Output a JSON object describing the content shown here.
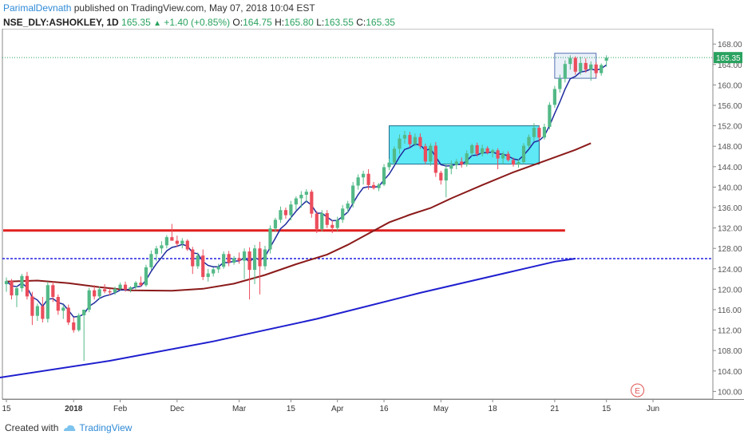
{
  "header": {
    "author": "ParimalDevnath",
    "published": "published on TradingView.com, May 07, 2018 10:04 EST",
    "symbol": "NSE_DLY:ASHOKLEY, 1D",
    "last": "165.35",
    "change": "+1.40 (+0.85%)",
    "o_label": "O:",
    "o_value": "164.75",
    "h_label": "H:",
    "h_value": "165.80",
    "l_label": "L:",
    "l_value": "163.55",
    "c_label": "C:",
    "c_value": "165.35"
  },
  "footer": {
    "created_with": "Created with",
    "brand": "TradingView"
  },
  "colors": {
    "up": "#53b987",
    "down": "#eb4d5c",
    "ema_short": "#1e2a9e",
    "ema_mid": "#8b1a1a",
    "ema_long": "#1f1fcf",
    "support_red": "#e02020",
    "support_blue": "#2020e0",
    "box_fill": "#5fe8f5",
    "last_price": "#2aa25f"
  },
  "chart_data": {
    "type": "candlestick",
    "y_ticks": [
      "168.00",
      "164.00",
      "160.00",
      "156.00",
      "152.00",
      "148.00",
      "144.00",
      "140.00",
      "136.00",
      "132.00",
      "128.00",
      "124.00",
      "120.00",
      "116.00",
      "112.00",
      "108.00",
      "104.00",
      "100.00"
    ],
    "x_ticks": [
      "Dec",
      "18",
      "2018",
      "15",
      "Feb",
      "15",
      "Mar",
      "15",
      "Apr",
      "16",
      "May",
      "21",
      "Jun"
    ],
    "ylim": [
      98.5,
      171
    ],
    "last_price_label": "165.35",
    "event_marker": "E",
    "candles": [
      [
        121.0,
        122.3,
        119.5,
        121.6
      ],
      [
        121.6,
        122.0,
        118.0,
        118.8
      ],
      [
        118.8,
        120.6,
        116.5,
        120.2
      ],
      [
        120.2,
        123.0,
        119.5,
        122.6
      ],
      [
        122.6,
        123.4,
        118.0,
        118.6
      ],
      [
        118.6,
        119.5,
        113.0,
        114.8
      ],
      [
        114.8,
        117.2,
        113.8,
        116.7
      ],
      [
        116.7,
        118.5,
        113.5,
        114.2
      ],
      [
        114.2,
        121.5,
        113.5,
        120.8
      ],
      [
        120.8,
        121.5,
        117.5,
        118.5
      ],
      [
        118.5,
        119.0,
        115.0,
        115.8
      ],
      [
        115.8,
        117.0,
        114.2,
        116.4
      ],
      [
        116.4,
        117.0,
        113.0,
        113.5
      ],
      [
        113.5,
        114.5,
        111.5,
        112.0
      ],
      [
        112.0,
        115.3,
        111.7,
        114.9
      ],
      [
        114.9,
        116.0,
        106.0,
        116.0
      ],
      [
        116.0,
        120.3,
        115.5,
        119.8
      ],
      [
        119.8,
        120.8,
        118.0,
        118.6
      ],
      [
        118.6,
        120.5,
        118.0,
        120.0
      ],
      [
        120.0,
        121.0,
        119.2,
        119.6
      ],
      [
        119.6,
        120.2,
        118.8,
        119.4
      ],
      [
        119.4,
        120.5,
        118.9,
        120.1
      ],
      [
        120.1,
        121.3,
        119.8,
        120.9
      ],
      [
        120.9,
        121.5,
        119.5,
        119.9
      ],
      [
        119.9,
        120.6,
        119.4,
        120.4
      ],
      [
        120.4,
        121.6,
        120.0,
        121.3
      ],
      [
        121.3,
        122.5,
        120.5,
        120.8
      ],
      [
        120.8,
        124.8,
        120.5,
        124.3
      ],
      [
        124.3,
        127.6,
        123.8,
        126.9
      ],
      [
        126.9,
        128.5,
        125.5,
        128.0
      ],
      [
        128.0,
        129.4,
        127.0,
        128.6
      ],
      [
        128.6,
        130.6,
        128.0,
        130.2
      ],
      [
        130.2,
        132.8,
        129.8,
        129.5
      ],
      [
        129.5,
        130.5,
        128.3,
        128.9
      ],
      [
        128.9,
        130.0,
        128.0,
        129.5
      ],
      [
        129.5,
        129.8,
        127.5,
        127.8
      ],
      [
        127.8,
        128.3,
        123.0,
        124.5
      ],
      [
        124.5,
        127.2,
        124.0,
        126.6
      ],
      [
        126.6,
        127.8,
        121.8,
        122.4
      ],
      [
        122.4,
        124.0,
        121.5,
        123.1
      ],
      [
        123.1,
        124.3,
        122.5,
        123.9
      ],
      [
        123.9,
        125.0,
        123.2,
        124.4
      ],
      [
        124.4,
        127.4,
        124.0,
        126.9
      ],
      [
        126.9,
        127.5,
        124.5,
        125.2
      ],
      [
        125.2,
        126.5,
        124.8,
        126.1
      ],
      [
        126.1,
        127.2,
        125.0,
        125.6
      ],
      [
        125.6,
        128.0,
        122.0,
        127.4
      ],
      [
        127.4,
        128.2,
        118.0,
        123.8
      ],
      [
        123.8,
        128.7,
        121.0,
        128.0
      ],
      [
        128.0,
        129.3,
        119.0,
        124.5
      ],
      [
        124.5,
        128.5,
        123.8,
        127.8
      ],
      [
        127.8,
        132.5,
        127.0,
        131.9
      ],
      [
        131.9,
        134.0,
        131.2,
        133.6
      ],
      [
        133.6,
        136.2,
        133.0,
        135.5
      ],
      [
        135.5,
        136.0,
        133.8,
        134.5
      ],
      [
        134.5,
        137.3,
        133.5,
        136.6
      ],
      [
        136.6,
        138.2,
        135.5,
        137.8
      ],
      [
        137.8,
        139.2,
        136.0,
        138.5
      ],
      [
        138.5,
        139.6,
        137.0,
        139.1
      ],
      [
        139.1,
        139.5,
        134.0,
        134.8
      ],
      [
        134.8,
        135.3,
        131.0,
        131.8
      ],
      [
        131.8,
        135.5,
        131.3,
        134.9
      ],
      [
        134.9,
        135.5,
        132.0,
        132.6
      ],
      [
        132.6,
        133.5,
        131.0,
        132.0
      ],
      [
        132.0,
        134.2,
        131.4,
        133.6
      ],
      [
        133.6,
        136.5,
        133.0,
        135.8
      ],
      [
        135.8,
        137.3,
        135.0,
        136.8
      ],
      [
        136.8,
        141.0,
        136.0,
        140.3
      ],
      [
        140.3,
        142.5,
        139.5,
        141.9
      ],
      [
        141.9,
        143.2,
        140.5,
        142.6
      ],
      [
        142.6,
        143.5,
        139.5,
        140.4
      ],
      [
        140.4,
        141.0,
        139.5,
        139.8
      ],
      [
        139.8,
        140.8,
        139.2,
        140.5
      ],
      [
        140.5,
        144.5,
        140.2,
        143.9
      ],
      [
        143.9,
        145.5,
        143.3,
        144.8
      ],
      [
        144.8,
        148.0,
        144.3,
        147.5
      ],
      [
        147.5,
        150.3,
        146.5,
        149.5
      ],
      [
        149.5,
        151.0,
        148.5,
        150.2
      ],
      [
        150.2,
        150.8,
        147.8,
        148.4
      ],
      [
        148.4,
        150.5,
        148.0,
        149.8
      ],
      [
        149.8,
        150.5,
        147.5,
        148.0
      ],
      [
        148.0,
        148.5,
        144.5,
        145.0
      ],
      [
        145.0,
        148.6,
        144.2,
        148.1
      ],
      [
        148.1,
        148.8,
        142.0,
        142.8
      ],
      [
        142.8,
        143.2,
        140.5,
        141.3
      ],
      [
        141.3,
        144.5,
        138.0,
        143.6
      ],
      [
        143.6,
        145.2,
        142.5,
        144.3
      ],
      [
        144.3,
        145.5,
        143.5,
        145.0
      ],
      [
        145.0,
        145.8,
        143.8,
        144.4
      ],
      [
        144.4,
        147.2,
        144.0,
        146.6
      ],
      [
        146.6,
        148.5,
        146.0,
        148.2
      ],
      [
        148.2,
        148.7,
        146.0,
        146.5
      ],
      [
        146.5,
        148.3,
        146.0,
        147.6
      ],
      [
        147.6,
        148.0,
        146.4,
        146.7
      ],
      [
        146.7,
        147.5,
        145.8,
        147.2
      ],
      [
        147.2,
        147.6,
        143.5,
        145.6
      ],
      [
        145.6,
        147.0,
        144.5,
        146.5
      ],
      [
        146.5,
        147.0,
        145.0,
        145.3
      ],
      [
        145.3,
        145.8,
        144.0,
        144.4
      ],
      [
        144.4,
        145.5,
        143.8,
        144.9
      ],
      [
        144.9,
        148.6,
        144.5,
        148.1
      ],
      [
        148.1,
        150.3,
        147.6,
        149.8
      ],
      [
        149.8,
        152.5,
        149.0,
        151.6
      ],
      [
        151.6,
        152.0,
        149.0,
        149.7
      ],
      [
        149.7,
        152.4,
        149.3,
        151.8
      ],
      [
        151.8,
        156.6,
        151.3,
        156.1
      ],
      [
        156.1,
        159.8,
        155.5,
        159.2
      ],
      [
        159.2,
        162.0,
        158.5,
        161.2
      ],
      [
        161.2,
        164.8,
        160.5,
        164.1
      ],
      [
        164.1,
        165.8,
        163.0,
        165.3
      ],
      [
        165.3,
        165.6,
        162.0,
        162.6
      ],
      [
        162.6,
        165.5,
        162.0,
        164.3
      ],
      [
        164.3,
        165.2,
        162.4,
        163.0
      ],
      [
        163.0,
        164.6,
        160.8,
        164.0
      ],
      [
        164.0,
        164.5,
        161.5,
        162.3
      ],
      [
        162.3,
        164.2,
        161.8,
        163.9
      ],
      [
        164.75,
        165.8,
        163.55,
        165.35
      ]
    ],
    "date_tick_index": {
      "Dec": 0,
      "18": 13,
      "2018": 22,
      "15": 33,
      "Feb": 45,
      "15b": 55,
      "Mar": 64,
      "15c": 73,
      "Apr": 84,
      "16": 94,
      "May": 106,
      "21": 116,
      "Jun": 125
    },
    "ema_mid_nodes": [
      [
        0,
        121.5
      ],
      [
        6,
        121.7
      ],
      [
        12,
        121.2
      ],
      [
        18,
        120.4
      ],
      [
        24,
        119.8
      ],
      [
        32,
        119.7
      ],
      [
        38,
        120.1
      ],
      [
        44,
        121.1
      ],
      [
        50,
        122.8
      ],
      [
        56,
        124.9
      ],
      [
        62,
        126.8
      ],
      [
        66,
        128.7
      ],
      [
        70,
        130.9
      ],
      [
        74,
        133.1
      ],
      [
        78,
        134.6
      ],
      [
        82,
        135.9
      ],
      [
        86,
        137.8
      ],
      [
        92,
        140.4
      ],
      [
        98,
        142.9
      ],
      [
        104,
        145.1
      ],
      [
        110,
        147.3
      ],
      [
        113,
        148.6
      ]
    ],
    "ema_long_nodes": [
      [
        -2,
        102.6
      ],
      [
        20,
        106.0
      ],
      [
        40,
        109.8
      ],
      [
        60,
        114.2
      ],
      [
        80,
        119.3
      ],
      [
        100,
        124.0
      ],
      [
        106,
        125.4
      ],
      [
        110,
        126.0
      ]
    ],
    "support_red": {
      "price": 131.5,
      "from_index": 0,
      "to_index": 108
    },
    "support_blue": {
      "price": 126.0,
      "from_index": 0,
      "to_index": 135
    },
    "rect_consolidation": {
      "x0_index": 74,
      "x1_index": 103,
      "top": 152.0,
      "bottom": 144.5
    },
    "rect_top": {
      "x0_index": 106,
      "x1_index": 114,
      "top": 166.2,
      "bottom": 161.3
    },
    "event_index": 122
  }
}
